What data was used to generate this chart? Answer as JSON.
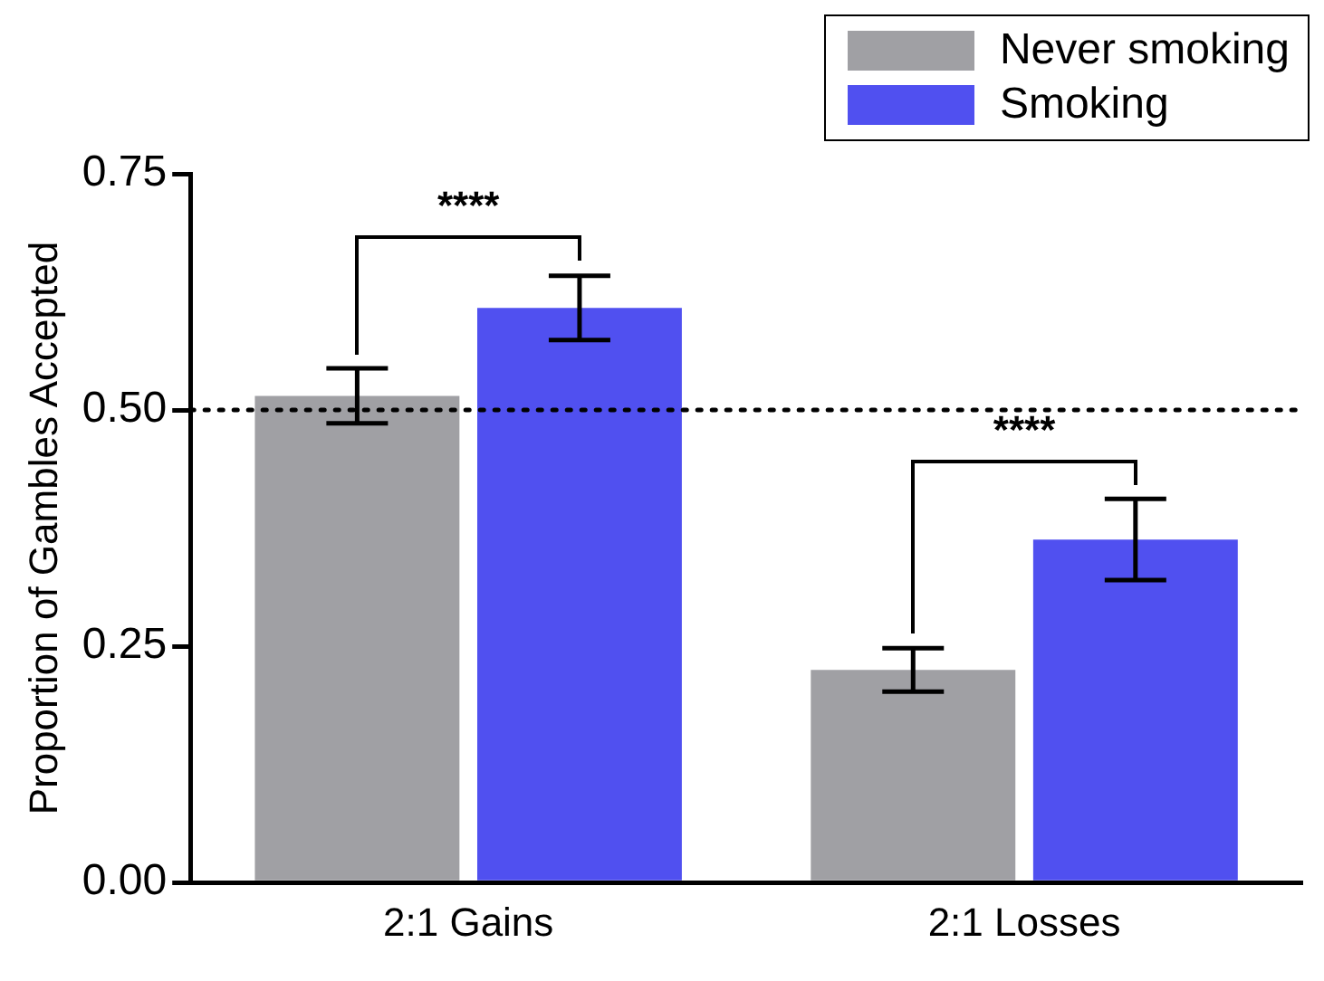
{
  "chart_data": {
    "type": "bar",
    "ylabel": "Proportion of Gambles Accepted",
    "categories": [
      "2:1 Gains",
      "2:1 Losses"
    ],
    "series": [
      {
        "name": "Never smoking",
        "color": "#a0a0a4",
        "values": [
          0.515,
          0.225
        ],
        "errors": [
          0.029,
          0.023
        ]
      },
      {
        "name": "Smoking",
        "color": "#5050f0",
        "values": [
          0.608,
          0.363
        ],
        "errors": [
          0.034,
          0.043
        ]
      }
    ],
    "ylim": [
      0,
      0.75
    ],
    "yticks": [
      {
        "value": 0,
        "label": "0.00"
      },
      {
        "value": 0.25,
        "label": "0.25"
      },
      {
        "value": 0.5,
        "label": "0.50"
      },
      {
        "value": 0.75,
        "label": "0.75"
      }
    ],
    "ref_lines": [
      {
        "axis": "y",
        "value": 0.5,
        "line_style": "dotted",
        "color": "#000000"
      }
    ],
    "annotations": [
      "****",
      "****"
    ],
    "grid": false,
    "legend": "top right"
  }
}
